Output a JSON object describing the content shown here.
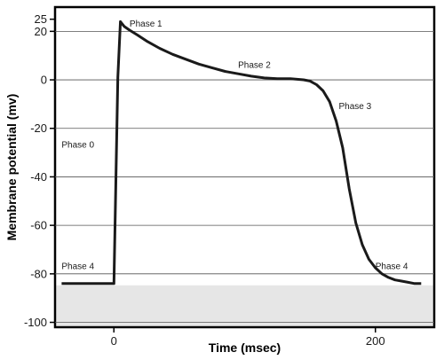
{
  "chart_data": {
    "type": "line",
    "xlabel": "Time (msec)",
    "ylabel": "Membrane potential (mv)",
    "xlim": [
      -45,
      245
    ],
    "ylim": [
      -102,
      30
    ],
    "x_ticks": [
      0,
      200
    ],
    "y_ticks": [
      25,
      20,
      0,
      -20,
      -40,
      -60,
      -80,
      -100
    ],
    "grid": "horizontal gridlines at y ticks",
    "series": [
      {
        "x": [
          -40,
          -30,
          -20,
          -10,
          0,
          3,
          5,
          8,
          12,
          18,
          25,
          35,
          45,
          55,
          65,
          75,
          85,
          95,
          105,
          115,
          125,
          135,
          145,
          150,
          155,
          160,
          165,
          170,
          175,
          180,
          185,
          190,
          195,
          200,
          205,
          210,
          215,
          220,
          225,
          230,
          235
        ],
        "y": [
          -84,
          -84,
          -84,
          -84,
          -84,
          1,
          24,
          22,
          20.5,
          18.5,
          16,
          13,
          10.5,
          8.5,
          6.5,
          5,
          3.5,
          2.5,
          1.5,
          0.8,
          0.5,
          0.5,
          0,
          -0.5,
          -2,
          -4.5,
          -9,
          -17,
          -28,
          -45,
          -59,
          -68,
          -74,
          -77.5,
          -80,
          -81.5,
          -82.5,
          -83,
          -83.5,
          -84,
          -84
        ]
      }
    ],
    "annotations": [
      {
        "text": "Phase 1",
        "x": 12,
        "y": 22
      },
      {
        "text": "Phase 2",
        "x": 95,
        "y": 5
      },
      {
        "text": "Phase 3",
        "x": 172,
        "y": -12
      },
      {
        "text": "Phase 0",
        "x": -40,
        "y": -28
      },
      {
        "text": "Phase 4",
        "x": -40,
        "y": -78
      },
      {
        "text": "Phase 4",
        "x": 200,
        "y": -78
      }
    ],
    "colors": {
      "line": "#1a1a1a",
      "grid": "#555555",
      "frame": "#000000",
      "shade": "#e6e6e6"
    }
  }
}
